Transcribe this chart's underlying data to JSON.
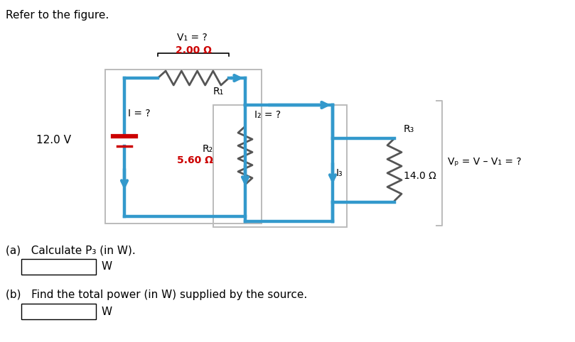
{
  "title_text": "Refer to the figure.",
  "V1_label": "V₁ = ?",
  "R1_label": "2.00 Ω",
  "R1_name": "R₁",
  "I_label": "I = ?",
  "source_label": "12.0 V",
  "R2_name": "R₂",
  "R2_label": "5.60 Ω",
  "I2_label": "I₂ = ?",
  "R3_name": "R₃",
  "I3_label": "I₃",
  "R3_label": "14.0 Ω",
  "Vp_label": "Vₚ = V – V₁ = ?",
  "qa_text": "(a)   Calculate P₃ (in W).",
  "qb_text": "(b)   Find the total power (in W) supplied by the source.",
  "W_label": "W",
  "color_blue": "#3399cc",
  "color_red": "#cc0000",
  "color_black": "#000000",
  "color_gray": "#aaaaaa",
  "background": "#ffffff"
}
